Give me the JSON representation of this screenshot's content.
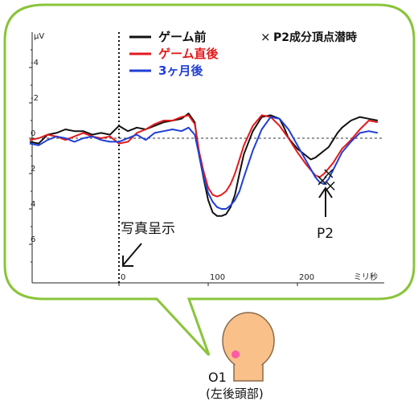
{
  "chart_data": {
    "type": "line",
    "x_unit_label": "ミリ秒",
    "y_unit_label": "μV",
    "xlim": [
      -100,
      300
    ],
    "ylim": [
      -6.5,
      8
    ],
    "y_inverted": true,
    "x_ticks": [
      "0",
      "100",
      "200"
    ],
    "x_tick_values": [
      0,
      100,
      200
    ],
    "y_ticks": [
      "-4",
      "-2",
      "0",
      "2",
      "4",
      "6"
    ],
    "y_tick_values": [
      -4,
      -2,
      0,
      2,
      4,
      6
    ],
    "zero_line": "dashed",
    "stimulus_line_at": 0,
    "legend": {
      "position": "top-left",
      "show_names": true
    },
    "series": [
      {
        "name": "ゲーム前",
        "color": "#111111",
        "x": [
          -100,
          -90,
          -80,
          -70,
          -60,
          -50,
          -40,
          -30,
          -20,
          -10,
          0,
          10,
          20,
          30,
          40,
          50,
          60,
          70,
          78,
          85,
          90,
          95,
          100,
          105,
          110,
          115,
          120,
          125,
          130,
          135,
          140,
          150,
          160,
          170,
          180,
          185,
          190,
          200,
          210,
          215,
          220,
          225,
          230,
          235,
          240,
          245,
          250,
          260,
          270,
          280,
          290
        ],
        "values": [
          0.2,
          0.3,
          -0.2,
          -0.3,
          -0.5,
          -0.4,
          -0.4,
          -0.2,
          -0.3,
          -0.2,
          -0.7,
          -0.4,
          -0.6,
          -0.5,
          -0.7,
          -0.9,
          -1.0,
          -1.1,
          -1.4,
          -0.9,
          1.0,
          2.3,
          3.5,
          4.2,
          4.4,
          4.4,
          4.3,
          3.9,
          3.2,
          2.0,
          0.9,
          -0.4,
          -1.2,
          -1.3,
          -1.1,
          -0.6,
          0.0,
          0.6,
          1.0,
          1.2,
          1.1,
          0.9,
          0.7,
          0.5,
          0.1,
          -0.3,
          -0.6,
          -1.0,
          -1.2,
          -1.1,
          -1.0
        ]
      },
      {
        "name": "ゲーム直後",
        "color": "#e31a1c",
        "x": [
          -100,
          -90,
          -80,
          -70,
          -60,
          -50,
          -40,
          -30,
          -20,
          -10,
          0,
          10,
          20,
          30,
          40,
          50,
          60,
          70,
          78,
          85,
          90,
          95,
          100,
          105,
          110,
          115,
          120,
          125,
          130,
          135,
          140,
          150,
          160,
          170,
          180,
          190,
          200,
          210,
          220,
          225,
          230,
          235,
          240,
          245,
          250,
          260,
          270,
          280,
          290
        ],
        "values": [
          0.1,
          0.0,
          -0.2,
          -0.1,
          0.1,
          -0.1,
          -0.3,
          -0.1,
          0.0,
          -0.1,
          0.3,
          0.2,
          -0.3,
          -0.5,
          -0.8,
          -1.0,
          -1.0,
          -1.2,
          -1.3,
          -0.8,
          0.8,
          1.9,
          2.8,
          3.2,
          3.3,
          3.2,
          3.0,
          2.6,
          2.0,
          1.2,
          0.4,
          -0.7,
          -1.3,
          -1.2,
          -0.7,
          0.0,
          0.8,
          1.5,
          2.1,
          2.2,
          2.0,
          1.7,
          1.4,
          1.0,
          0.6,
          0.1,
          -0.5,
          -1.0,
          -0.9
        ]
      },
      {
        "name": "3ヶ月後",
        "color": "#1f3fd6",
        "x": [
          -100,
          -90,
          -80,
          -70,
          -60,
          -50,
          -40,
          -30,
          -20,
          -10,
          0,
          10,
          20,
          30,
          40,
          50,
          60,
          70,
          78,
          85,
          90,
          95,
          100,
          105,
          110,
          115,
          120,
          125,
          130,
          135,
          140,
          150,
          160,
          170,
          180,
          190,
          200,
          210,
          220,
          225,
          230,
          235,
          240,
          245,
          250,
          260,
          270,
          280,
          290
        ],
        "values": [
          0.3,
          0.4,
          0.1,
          -0.1,
          0.0,
          0.2,
          0.0,
          -0.1,
          0.1,
          0.2,
          0.2,
          0.0,
          -0.2,
          0.1,
          -0.3,
          -0.4,
          -0.5,
          -0.4,
          -0.6,
          -0.2,
          1.0,
          2.2,
          3.1,
          3.6,
          3.9,
          4.0,
          4.0,
          3.8,
          3.5,
          3.0,
          2.2,
          0.7,
          -0.5,
          -1.2,
          -1.1,
          -0.5,
          0.4,
          1.3,
          2.2,
          2.5,
          2.6,
          2.3,
          1.8,
          1.3,
          0.8,
          0.2,
          -0.3,
          -0.4,
          -0.3
        ]
      }
    ],
    "p2_markers": [
      {
        "x": 228,
        "y": 2.4,
        "color": "#111111"
      },
      {
        "x": 235,
        "y": 2.0,
        "color": "#e31a1c"
      },
      {
        "x": 237,
        "y": 2.7,
        "color": "#1f3fd6"
      }
    ],
    "marker_legend": "P2成分頂点潜時",
    "marker_symbol": "×",
    "annotations": {
      "stimulus_label": "写真呈示",
      "p2_label": "P2"
    }
  },
  "electrode": {
    "label": "O1",
    "sublabel": "(左後頭部)",
    "head_color": "#f9c08a",
    "head_stroke": "#8a6a4a",
    "dot_color": "#ff5aa5"
  },
  "bubble": {
    "border_color": "#8ac43a"
  }
}
